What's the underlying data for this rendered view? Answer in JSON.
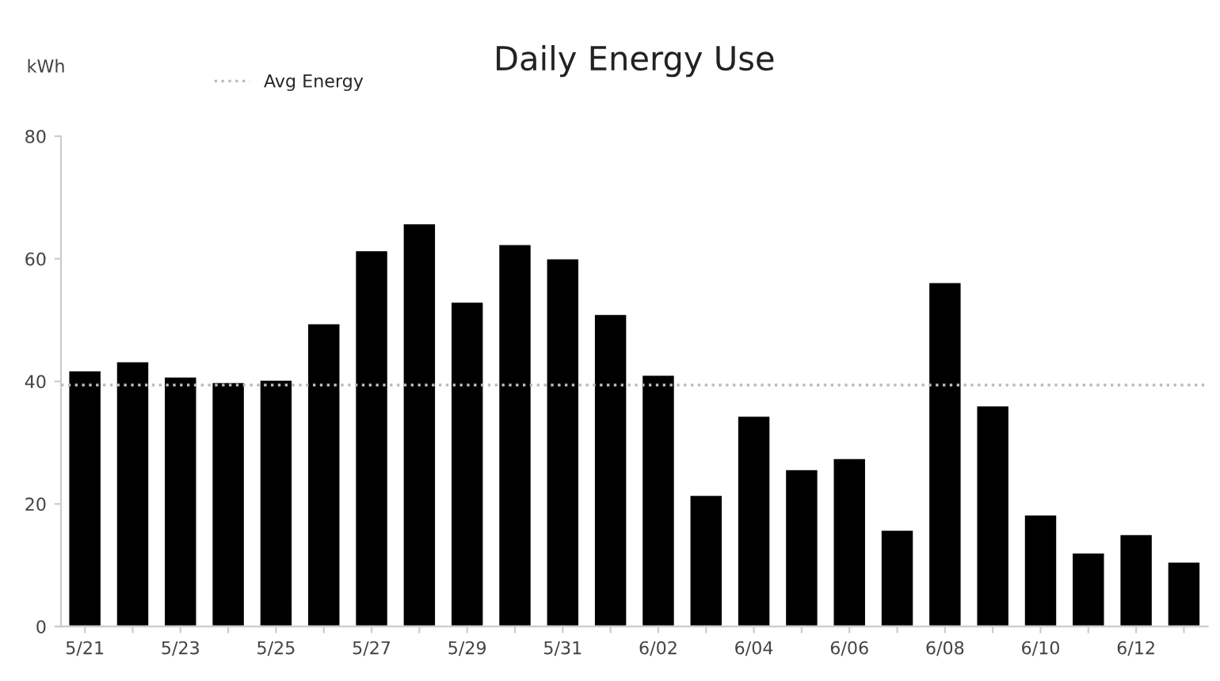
{
  "chart_data": {
    "type": "bar",
    "title": "Daily Energy Use",
    "ylabel": "kWh",
    "categories": [
      "5/21",
      null,
      "5/23",
      null,
      "5/25",
      null,
      "5/27",
      null,
      "5/29",
      null,
      "5/31",
      null,
      "6/02",
      null,
      "6/04",
      null,
      "6/06",
      null,
      "6/08",
      null,
      "6/10",
      null,
      "6/12",
      null
    ],
    "series": [
      {
        "color": "#000000",
        "values": [
          41.8,
          43.3,
          40.8,
          39.9,
          40.3,
          49.5,
          61.4,
          65.8,
          53,
          62.4,
          60.1,
          51,
          41.1,
          21.5,
          34.4,
          25.7,
          27.5,
          15.8,
          56.2,
          36.1,
          18.3,
          12.1,
          15.1,
          10.6
        ]
      }
    ],
    "ylim": [
      0,
      80
    ],
    "yticks": [
      0,
      20,
      40,
      60,
      80
    ],
    "ref_lines": [
      {
        "axis": "y",
        "value": 39.4,
        "label": "Avg Energy",
        "color": "#bbbbbb",
        "line_style": "dotted"
      }
    ],
    "legend": "top left",
    "grid": false
  }
}
